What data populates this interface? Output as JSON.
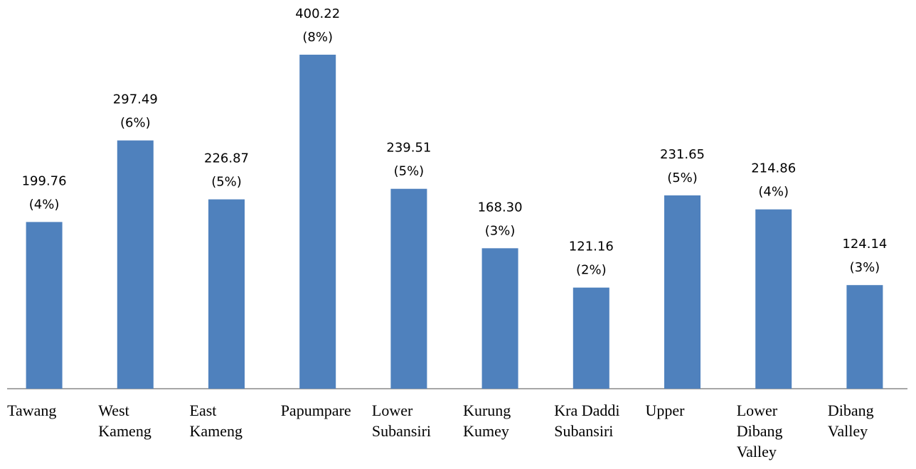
{
  "chart_data": {
    "type": "bar",
    "categories": [
      "Tawang",
      "West\nKameng",
      "East\nKameng",
      "Papumpare",
      "Lower\nSubansiri",
      "Kurung\nKumey",
      "Kra Daddi\nSubansiri",
      "Upper",
      "Lower\nDibang\nValley",
      "Dibang\nValley"
    ],
    "values": [
      199.76,
      297.49,
      226.87,
      400.22,
      239.51,
      168.3,
      121.16,
      231.65,
      214.86,
      124.14
    ],
    "value_labels": [
      "199.76",
      "297.49",
      "226.87",
      "400.22",
      "239.51",
      "168.30",
      "121.16",
      "231.65",
      "214.86",
      "124.14"
    ],
    "percent_labels": [
      "(4%)",
      "(6%)",
      "(5%)",
      "(8%)",
      "(5%)",
      "(3%)",
      "(2%)",
      "(5%)",
      "(4%)",
      "(3%)"
    ],
    "color": "#4f81bd",
    "ylim": [
      0,
      450
    ]
  }
}
